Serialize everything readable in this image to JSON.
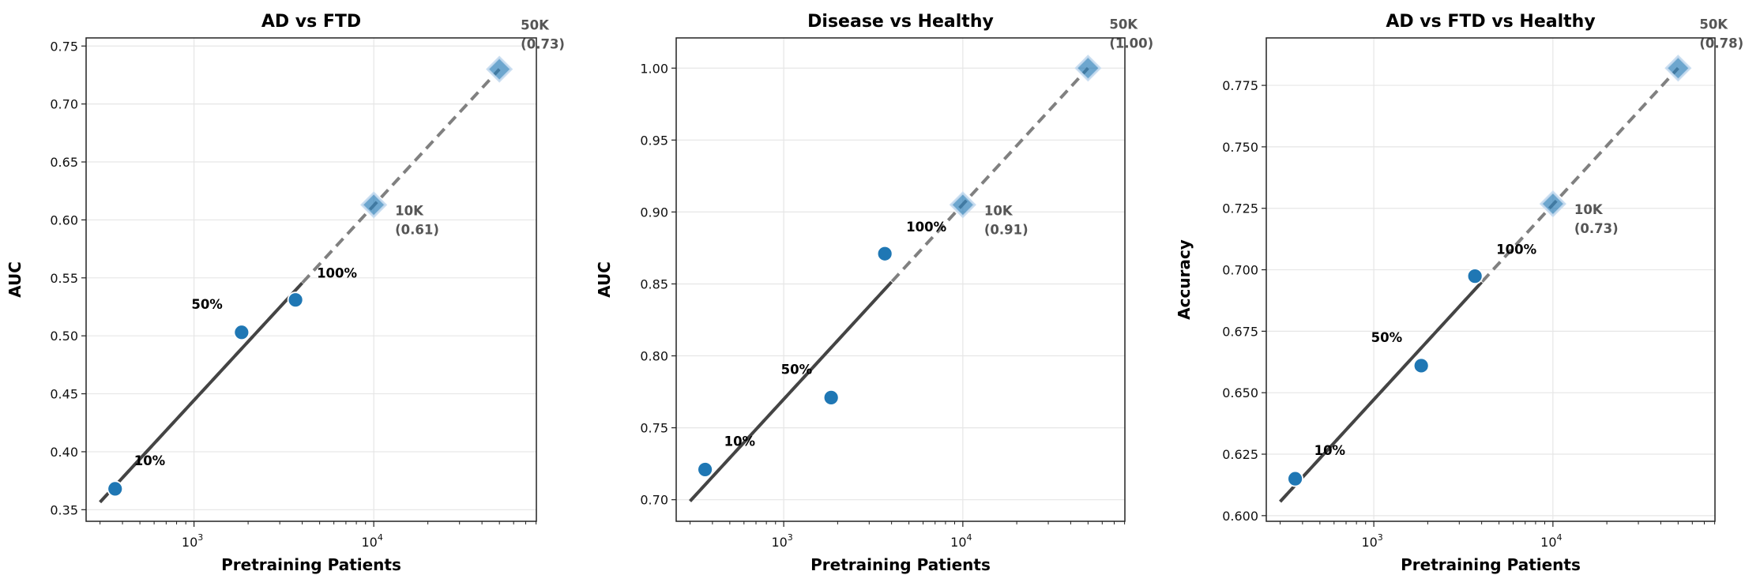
{
  "chart_data": [
    {
      "type": "scatter",
      "title": "AD vs FTD",
      "xlabel": "Pretraining Patients",
      "ylabel": "AUC",
      "xscale": "log",
      "xlim": [
        251,
        80300
      ],
      "ylim": [
        0.34,
        0.757
      ],
      "grid": true,
      "x_ticks": [
        {
          "value": 1000,
          "base": "10",
          "exp": "3"
        },
        {
          "value": 10000,
          "base": "10",
          "exp": "4"
        }
      ],
      "y_ticks": [
        {
          "value": 0.35,
          "label": "0.35"
        },
        {
          "value": 0.4,
          "label": "0.40"
        },
        {
          "value": 0.45,
          "label": "0.45"
        },
        {
          "value": 0.5,
          "label": "0.50"
        },
        {
          "value": 0.55,
          "label": "0.55"
        },
        {
          "value": 0.6,
          "label": "0.60"
        },
        {
          "value": 0.65,
          "label": "0.65"
        },
        {
          "value": 0.7,
          "label": "0.70"
        },
        {
          "value": 0.75,
          "label": "0.75"
        }
      ],
      "observed": [
        {
          "x": 364,
          "y": 0.368,
          "label": "10%"
        },
        {
          "x": 1840,
          "y": 0.503,
          "label": "50%"
        },
        {
          "x": 3670,
          "y": 0.531,
          "label": "100%"
        }
      ],
      "projected": [
        {
          "x": 10000,
          "y": 0.613,
          "label": "10K",
          "value_label": "(0.61)"
        },
        {
          "x": 50000,
          "y": 0.73,
          "label": "50K",
          "value_label": "(0.73)"
        }
      ],
      "trend": {
        "x_start": 300,
        "y_start": 0.3565,
        "x_end": 50000,
        "y_end": 0.73,
        "solid_until": 4000
      }
    },
    {
      "type": "scatter",
      "title": "Disease vs Healthy",
      "xlabel": "Pretraining Patients",
      "ylabel": "AUC",
      "xscale": "log",
      "xlim": [
        251,
        80300
      ],
      "ylim": [
        0.685,
        1.021
      ],
      "grid": true,
      "x_ticks": [
        {
          "value": 1000,
          "base": "10",
          "exp": "3"
        },
        {
          "value": 10000,
          "base": "10",
          "exp": "4"
        }
      ],
      "y_ticks": [
        {
          "value": 0.7,
          "label": "0.70"
        },
        {
          "value": 0.75,
          "label": "0.75"
        },
        {
          "value": 0.8,
          "label": "0.80"
        },
        {
          "value": 0.85,
          "label": "0.85"
        },
        {
          "value": 0.9,
          "label": "0.90"
        },
        {
          "value": 0.95,
          "label": "0.95"
        },
        {
          "value": 1.0,
          "label": "1.00"
        }
      ],
      "observed": [
        {
          "x": 364,
          "y": 0.721,
          "label": "10%"
        },
        {
          "x": 1840,
          "y": 0.771,
          "label": "50%"
        },
        {
          "x": 3670,
          "y": 0.871,
          "label": "100%"
        }
      ],
      "projected": [
        {
          "x": 10000,
          "y": 0.905,
          "label": "10K",
          "value_label": "(0.91)"
        },
        {
          "x": 50000,
          "y": 1.0,
          "label": "50K",
          "value_label": "(1.00)"
        }
      ],
      "trend": {
        "x_start": 300,
        "y_start": 0.699,
        "x_end": 50000,
        "y_end": 1.0,
        "solid_until": 4000
      }
    },
    {
      "type": "scatter",
      "title": "AD vs FTD vs Healthy",
      "xlabel": "Pretraining Patients",
      "ylabel": "Accuracy",
      "xscale": "log",
      "xlim": [
        251,
        80300
      ],
      "ylim": [
        0.5977,
        0.7943
      ],
      "grid": true,
      "x_ticks": [
        {
          "value": 1000,
          "base": "10",
          "exp": "3"
        },
        {
          "value": 10000,
          "base": "10",
          "exp": "4"
        }
      ],
      "y_ticks": [
        {
          "value": 0.6,
          "label": "0.600"
        },
        {
          "value": 0.625,
          "label": "0.625"
        },
        {
          "value": 0.65,
          "label": "0.650"
        },
        {
          "value": 0.675,
          "label": "0.675"
        },
        {
          "value": 0.7,
          "label": "0.700"
        },
        {
          "value": 0.725,
          "label": "0.725"
        },
        {
          "value": 0.75,
          "label": "0.750"
        },
        {
          "value": 0.775,
          "label": "0.775"
        }
      ],
      "observed": [
        {
          "x": 364,
          "y": 0.615,
          "label": "10%"
        },
        {
          "x": 1840,
          "y": 0.661,
          "label": "50%"
        },
        {
          "x": 3670,
          "y": 0.6974,
          "label": "100%"
        }
      ],
      "projected": [
        {
          "x": 10000,
          "y": 0.7268,
          "label": "10K",
          "value_label": "(0.73)"
        },
        {
          "x": 50000,
          "y": 0.782,
          "label": "50K",
          "value_label": "(0.78)"
        }
      ],
      "trend": {
        "x_start": 300,
        "y_start": 0.6057,
        "x_end": 50000,
        "y_end": 0.782,
        "solid_until": 4000
      }
    }
  ],
  "colors": {
    "point": "#1f77b4",
    "trend_solid": "#444444",
    "trend_dashed": "#808080",
    "grid": "#e6e6e6",
    "projection_label": "#555555"
  }
}
